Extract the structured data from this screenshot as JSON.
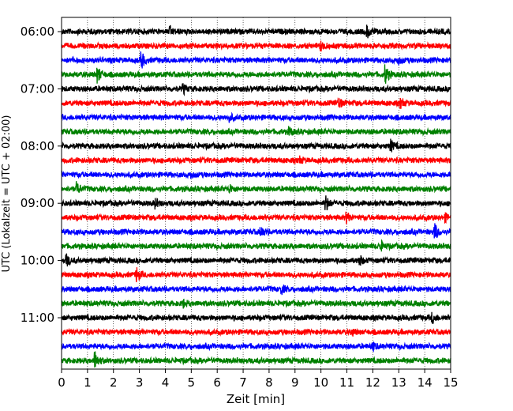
{
  "chart_data": {
    "type": "line",
    "title": "",
    "xlabel": "Zeit  [min]",
    "ylabel": "UTC (Lokalzeit = UTC + 02:00)",
    "xlim": [
      0,
      15
    ],
    "x_ticks": [
      "0",
      "1",
      "2",
      "3",
      "4",
      "5",
      "6",
      "7",
      "8",
      "9",
      "10",
      "11",
      "12",
      "13",
      "14",
      "15"
    ],
    "y_ticks": [
      {
        "label": "06:00",
        "row": 0
      },
      {
        "label": "07:00",
        "row": 4
      },
      {
        "label": "08:00",
        "row": 8
      },
      {
        "label": "09:00",
        "row": 12
      },
      {
        "label": "10:00",
        "row": 16
      },
      {
        "label": "11:00",
        "row": 20
      }
    ],
    "grid": "vertical dotted at each minute",
    "row_minutes": 15,
    "row_colors": [
      "#000000",
      "#ff0000",
      "#0000ff",
      "#008000"
    ],
    "traces": [
      {
        "start": "06:00",
        "color": "#000000",
        "events": [
          [
            4.2,
            0.5
          ],
          [
            11.8,
            0.7
          ]
        ]
      },
      {
        "start": "06:15",
        "color": "#ff0000",
        "events": [
          [
            10.0,
            0.5
          ]
        ]
      },
      {
        "start": "06:30",
        "color": "#0000ff",
        "events": [
          [
            3.1,
            1.0
          ],
          [
            13.0,
            0.4
          ]
        ]
      },
      {
        "start": "06:45",
        "color": "#008000",
        "events": [
          [
            1.4,
            1.0
          ],
          [
            12.5,
            1.1
          ]
        ]
      },
      {
        "start": "07:00",
        "color": "#000000",
        "events": [
          [
            4.7,
            0.5
          ]
        ]
      },
      {
        "start": "07:15",
        "color": "#ff0000",
        "events": [
          [
            10.7,
            0.6
          ],
          [
            13.1,
            0.5
          ]
        ]
      },
      {
        "start": "07:30",
        "color": "#0000ff",
        "events": [
          [
            6.5,
            0.4
          ]
        ]
      },
      {
        "start": "07:45",
        "color": "#008000",
        "events": [
          [
            8.8,
            0.5
          ]
        ]
      },
      {
        "start": "08:00",
        "color": "#000000",
        "events": [
          [
            12.7,
            0.7
          ]
        ]
      },
      {
        "start": "08:15",
        "color": "#ff0000",
        "events": [
          [
            9.2,
            0.3
          ]
        ]
      },
      {
        "start": "08:30",
        "color": "#0000ff",
        "events": [
          [
            5.0,
            0.3
          ]
        ]
      },
      {
        "start": "08:45",
        "color": "#008000",
        "events": [
          [
            0.6,
            0.7
          ],
          [
            6.5,
            0.4
          ]
        ]
      },
      {
        "start": "09:00",
        "color": "#000000",
        "events": [
          [
            3.6,
            0.6
          ],
          [
            10.2,
            1.0
          ]
        ]
      },
      {
        "start": "09:15",
        "color": "#ff0000",
        "events": [
          [
            11.0,
            0.6
          ],
          [
            14.8,
            0.4
          ]
        ]
      },
      {
        "start": "09:30",
        "color": "#0000ff",
        "events": [
          [
            7.7,
            0.6
          ],
          [
            14.4,
            1.0
          ]
        ]
      },
      {
        "start": "09:45",
        "color": "#008000",
        "events": [
          [
            12.3,
            0.6
          ]
        ]
      },
      {
        "start": "10:00",
        "color": "#000000",
        "events": [
          [
            0.2,
            0.7
          ],
          [
            11.5,
            0.6
          ]
        ]
      },
      {
        "start": "10:15",
        "color": "#ff0000",
        "events": [
          [
            2.9,
            0.9
          ]
        ]
      },
      {
        "start": "10:30",
        "color": "#0000ff",
        "events": [
          [
            8.5,
            0.5
          ]
        ]
      },
      {
        "start": "10:45",
        "color": "#008000",
        "events": [
          [
            4.7,
            0.4
          ]
        ]
      },
      {
        "start": "11:00",
        "color": "#000000",
        "events": [
          [
            14.3,
            0.6
          ]
        ]
      },
      {
        "start": "11:15",
        "color": "#ff0000",
        "events": [
          [
            11.2,
            0.4
          ]
        ]
      },
      {
        "start": "11:30",
        "color": "#0000ff",
        "events": [
          [
            12.0,
            0.4
          ]
        ]
      },
      {
        "start": "11:45",
        "color": "#008000",
        "events": [
          [
            1.3,
            1.1
          ]
        ]
      }
    ]
  }
}
